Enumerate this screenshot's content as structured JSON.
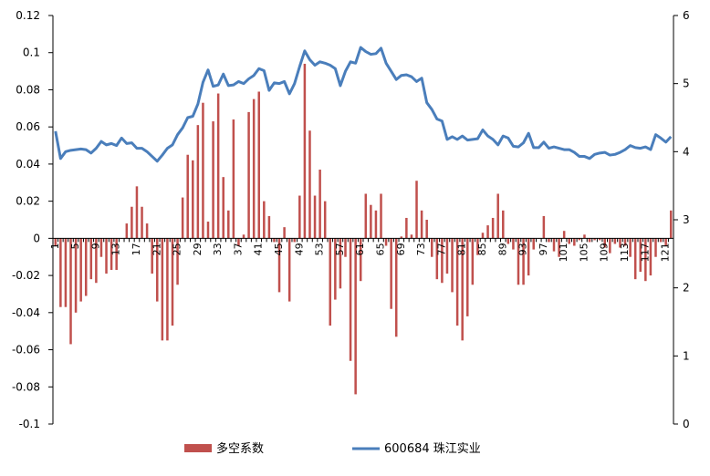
{
  "chart_data": {
    "type": "bar+line",
    "title": "",
    "xlabel": "",
    "ylabel": "",
    "x": [
      1,
      2,
      3,
      4,
      5,
      6,
      7,
      8,
      9,
      10,
      11,
      12,
      13,
      14,
      15,
      16,
      17,
      18,
      19,
      20,
      21,
      22,
      23,
      24,
      25,
      26,
      27,
      28,
      29,
      30,
      31,
      32,
      33,
      34,
      35,
      36,
      37,
      38,
      39,
      40,
      41,
      42,
      43,
      44,
      45,
      46,
      47,
      48,
      49,
      50,
      51,
      52,
      53,
      54,
      55,
      56,
      57,
      58,
      59,
      60,
      61,
      62,
      63,
      64,
      65,
      66,
      67,
      68,
      69,
      70,
      71,
      72,
      73,
      74,
      75,
      76,
      77,
      78,
      79,
      80,
      81,
      82,
      83,
      84,
      85,
      86,
      87,
      88,
      89,
      90,
      91,
      92,
      93,
      94,
      95,
      96,
      97,
      98,
      99,
      100,
      101,
      102,
      103,
      104,
      105,
      106,
      107,
      108,
      109,
      110,
      111,
      112,
      113,
      114,
      115,
      116,
      117,
      118,
      119,
      120,
      121,
      122
    ],
    "x_tick_labels": [
      "1",
      "5",
      "9",
      "13",
      "17",
      "21",
      "25",
      "29",
      "33",
      "37",
      "41",
      "45",
      "49",
      "53",
      "57",
      "61",
      "65",
      "69",
      "73",
      "77",
      "81",
      "85",
      "89",
      "93",
      "97",
      "101",
      "105",
      "109",
      "113",
      "117",
      "121"
    ],
    "x_tick_values": [
      1,
      5,
      9,
      13,
      17,
      21,
      25,
      29,
      33,
      37,
      41,
      45,
      49,
      53,
      57,
      61,
      65,
      69,
      73,
      77,
      81,
      85,
      89,
      93,
      97,
      101,
      105,
      109,
      113,
      117,
      121
    ],
    "y_left": {
      "min": -0.1,
      "max": 0.12,
      "ticks": [
        -0.1,
        -0.08,
        -0.06,
        -0.04,
        -0.02,
        0,
        0.02,
        0.04,
        0.06,
        0.08,
        0.1,
        0.12
      ],
      "tick_labels": [
        "-0.1",
        "-0.08",
        "-0.06",
        "-0.04",
        "-0.02",
        "0",
        "0.02",
        "0.04",
        "0.06",
        "0.08",
        "0.1",
        "0.12"
      ]
    },
    "y_right": {
      "min": 0,
      "max": 6,
      "ticks": [
        0,
        1,
        2,
        3,
        4,
        5,
        6
      ],
      "tick_labels": [
        "0",
        "1",
        "2",
        "3",
        "4",
        "5",
        "6"
      ]
    },
    "grid": false,
    "legend_position": "bottom",
    "series": [
      {
        "name": "多空系数",
        "type": "bar",
        "axis": "left",
        "color": "#C0504D",
        "values": [
          -0.004,
          -0.037,
          -0.037,
          -0.057,
          -0.04,
          -0.034,
          -0.031,
          -0.022,
          -0.024,
          -0.01,
          -0.019,
          -0.017,
          -0.017,
          0.0,
          0.008,
          0.017,
          0.028,
          0.017,
          0.008,
          -0.019,
          -0.034,
          -0.055,
          -0.055,
          -0.047,
          -0.025,
          0.022,
          0.045,
          0.042,
          0.061,
          0.073,
          0.009,
          0.063,
          0.078,
          0.033,
          0.015,
          0.064,
          -0.004,
          0.002,
          0.068,
          0.075,
          0.079,
          0.02,
          0.012,
          -0.002,
          -0.029,
          0.006,
          -0.034,
          -0.002,
          0.023,
          0.094,
          0.058,
          0.023,
          0.037,
          0.02,
          -0.047,
          -0.033,
          -0.027,
          -0.01,
          -0.066,
          -0.084,
          -0.023,
          0.024,
          0.018,
          0.015,
          0.024,
          -0.004,
          -0.038,
          -0.053,
          0.001,
          0.011,
          0.002,
          0.031,
          0.015,
          0.01,
          -0.01,
          -0.022,
          -0.024,
          -0.019,
          -0.029,
          -0.047,
          -0.055,
          -0.042,
          -0.025,
          -0.009,
          0.003,
          0.007,
          0.011,
          0.024,
          0.015,
          -0.003,
          -0.006,
          -0.025,
          -0.025,
          -0.02,
          -0.006,
          0.0,
          0.012,
          -0.002,
          -0.007,
          -0.01,
          0.004,
          -0.003,
          -0.004,
          -0.001,
          0.002,
          -0.002,
          -0.001,
          -0.001,
          -0.005,
          -0.008,
          -0.003,
          -0.005,
          -0.004,
          -0.01,
          -0.022,
          -0.018,
          -0.023,
          -0.02,
          -0.01,
          -0.002,
          -0.004,
          0.015
        ]
      },
      {
        "name": "600684 珠江实业",
        "type": "line",
        "axis": "right",
        "color": "#4A7EBB",
        "values": [
          4.3,
          3.9,
          4.0,
          4.02,
          4.03,
          4.04,
          4.03,
          3.98,
          4.05,
          4.15,
          4.1,
          4.12,
          4.09,
          4.2,
          4.12,
          4.13,
          4.05,
          4.05,
          4.0,
          3.93,
          3.86,
          3.95,
          4.05,
          4.1,
          4.25,
          4.35,
          4.5,
          4.52,
          4.7,
          5.02,
          5.2,
          4.96,
          4.98,
          5.14,
          4.97,
          4.98,
          5.03,
          5.0,
          5.07,
          5.12,
          5.22,
          5.19,
          4.9,
          5.01,
          5.0,
          5.03,
          4.85,
          5.0,
          5.25,
          5.48,
          5.35,
          5.27,
          5.32,
          5.3,
          5.27,
          5.22,
          4.97,
          5.18,
          5.32,
          5.3,
          5.53,
          5.47,
          5.43,
          5.44,
          5.52,
          5.3,
          5.18,
          5.06,
          5.12,
          5.13,
          5.1,
          5.03,
          5.08,
          4.72,
          4.62,
          4.48,
          4.45,
          4.18,
          4.22,
          4.18,
          4.23,
          4.17,
          4.18,
          4.19,
          4.32,
          4.23,
          4.18,
          4.1,
          4.23,
          4.2,
          4.08,
          4.07,
          4.13,
          4.27,
          4.06,
          4.06,
          4.14,
          4.05,
          4.07,
          4.05,
          4.03,
          4.03,
          3.99,
          3.93,
          3.93,
          3.9,
          3.96,
          3.98,
          3.99,
          3.95,
          3.96,
          3.99,
          4.03,
          4.09,
          4.06,
          4.05,
          4.07,
          4.03,
          4.25,
          4.2,
          4.14,
          4.22
        ]
      }
    ]
  }
}
